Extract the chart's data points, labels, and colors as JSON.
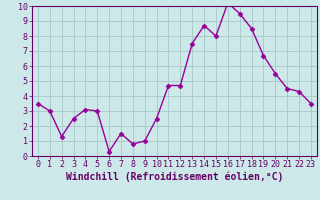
{
  "x": [
    0,
    1,
    2,
    3,
    4,
    5,
    6,
    7,
    8,
    9,
    10,
    11,
    12,
    13,
    14,
    15,
    16,
    17,
    18,
    19,
    20,
    21,
    22,
    23
  ],
  "y": [
    3.5,
    3.0,
    1.3,
    2.5,
    3.1,
    3.0,
    0.3,
    1.5,
    0.8,
    1.0,
    2.5,
    4.7,
    4.7,
    7.5,
    8.7,
    8.0,
    10.2,
    9.5,
    8.5,
    6.7,
    5.5,
    4.5,
    4.3,
    3.5
  ],
  "line_color": "#990099",
  "marker": "D",
  "marker_size": 2.5,
  "bg_color": "#cce8e8",
  "grid_color": "#aacccc",
  "xlabel": "Windchill (Refroidissement éolien,°C)",
  "ylabel": "",
  "ylim": [
    0,
    10
  ],
  "xlim": [
    -0.5,
    23.5
  ],
  "yticks": [
    0,
    1,
    2,
    3,
    4,
    5,
    6,
    7,
    8,
    9,
    10
  ],
  "xticks": [
    0,
    1,
    2,
    3,
    4,
    5,
    6,
    7,
    8,
    9,
    10,
    11,
    12,
    13,
    14,
    15,
    16,
    17,
    18,
    19,
    20,
    21,
    22,
    23
  ],
  "tick_fontsize": 6,
  "xlabel_fontsize": 7,
  "spine_color": "#660066",
  "xlabel_color": "#660066",
  "tick_color": "#660066",
  "linewidth": 1.0
}
